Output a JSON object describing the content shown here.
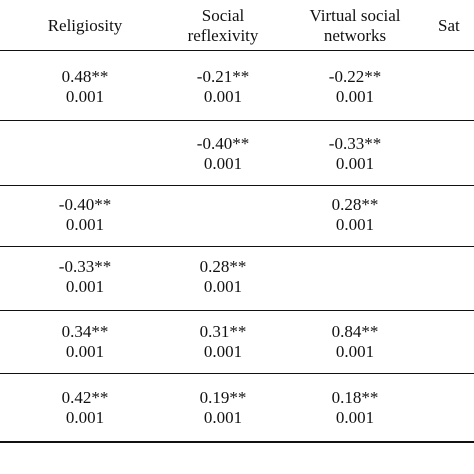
{
  "table": {
    "headers": [
      [
        "Religiosity"
      ],
      [
        "Social",
        "reflexivity"
      ],
      [
        "Virtual social",
        "networks"
      ],
      [
        "Sat"
      ]
    ],
    "rows": [
      [
        [
          "0.48**",
          "0.001"
        ],
        [
          "-0.21**",
          "0.001"
        ],
        [
          "-0.22**",
          "0.001"
        ]
      ],
      [
        [
          "",
          ""
        ],
        [
          "-0.40**",
          "0.001"
        ],
        [
          "-0.33**",
          "0.001"
        ]
      ],
      [
        [
          "-0.40**",
          "0.001"
        ],
        [
          "",
          ""
        ],
        [
          "0.28**",
          "0.001"
        ]
      ],
      [
        [
          "-0.33**",
          "0.001"
        ],
        [
          "0.28**",
          "0.001"
        ],
        [
          "",
          ""
        ]
      ],
      [
        [
          "0.34**",
          "0.001"
        ],
        [
          "0.31**",
          "0.001"
        ],
        [
          "0.84**",
          "0.001"
        ]
      ],
      [
        [
          "0.42**",
          "0.001"
        ],
        [
          "0.19**",
          "0.001"
        ],
        [
          "0.18**",
          "0.001"
        ]
      ]
    ]
  }
}
